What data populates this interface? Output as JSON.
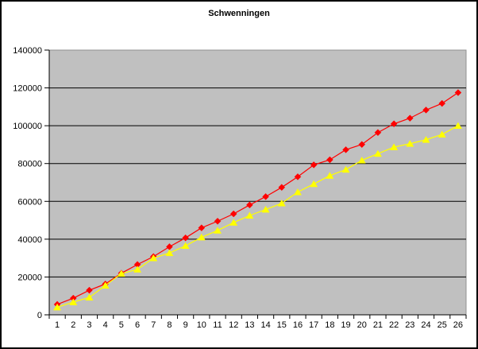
{
  "chart_data": {
    "type": "line",
    "title": "Schwenningen",
    "x": [
      1,
      2,
      3,
      4,
      5,
      6,
      7,
      8,
      9,
      10,
      11,
      12,
      13,
      14,
      15,
      16,
      17,
      18,
      19,
      20,
      21,
      22,
      23,
      24,
      25,
      26
    ],
    "series": [
      {
        "name": "series-red-diamond",
        "color": "#FF0000",
        "marker": "diamond",
        "values": [
          5500,
          8800,
          13000,
          16300,
          22000,
          26600,
          30800,
          36000,
          40700,
          46000,
          49500,
          53400,
          58100,
          62500,
          67400,
          73000,
          79300,
          82000,
          87300,
          90100,
          96400,
          101000,
          104000,
          108300,
          111800,
          117500
        ]
      },
      {
        "name": "series-yellow-triangle",
        "color": "#FFFF00",
        "marker": "triangle-up",
        "values": [
          4000,
          6700,
          9200,
          15500,
          21800,
          24000,
          30000,
          32700,
          36500,
          41000,
          44600,
          48800,
          52500,
          55700,
          59000,
          64900,
          69200,
          73600,
          76800,
          81700,
          85200,
          88700,
          90500,
          92600,
          95400,
          100000
        ]
      }
    ],
    "ylim": [
      0,
      140000
    ],
    "yticks": [
      0,
      20000,
      40000,
      60000,
      80000,
      100000,
      120000,
      140000
    ],
    "ytick_labels": [
      "0",
      "20000",
      "40000",
      "60000",
      "80000",
      "100000",
      "120000",
      "140000"
    ],
    "xtick_labels": [
      "1",
      "2",
      "3",
      "4",
      "5",
      "6",
      "7",
      "8",
      "9",
      "10",
      "11",
      "12",
      "13",
      "14",
      "15",
      "16",
      "17",
      "18",
      "19",
      "20",
      "21",
      "22",
      "23",
      "24",
      "25",
      "26"
    ],
    "grid": true,
    "legend": "none",
    "plot_background": "#C0C0C0",
    "plot_border_color": "#909090",
    "gridline_color": "#000000",
    "axis_color": "#000000",
    "background": "#FFFFFF",
    "frame_border_color": "#000000"
  }
}
